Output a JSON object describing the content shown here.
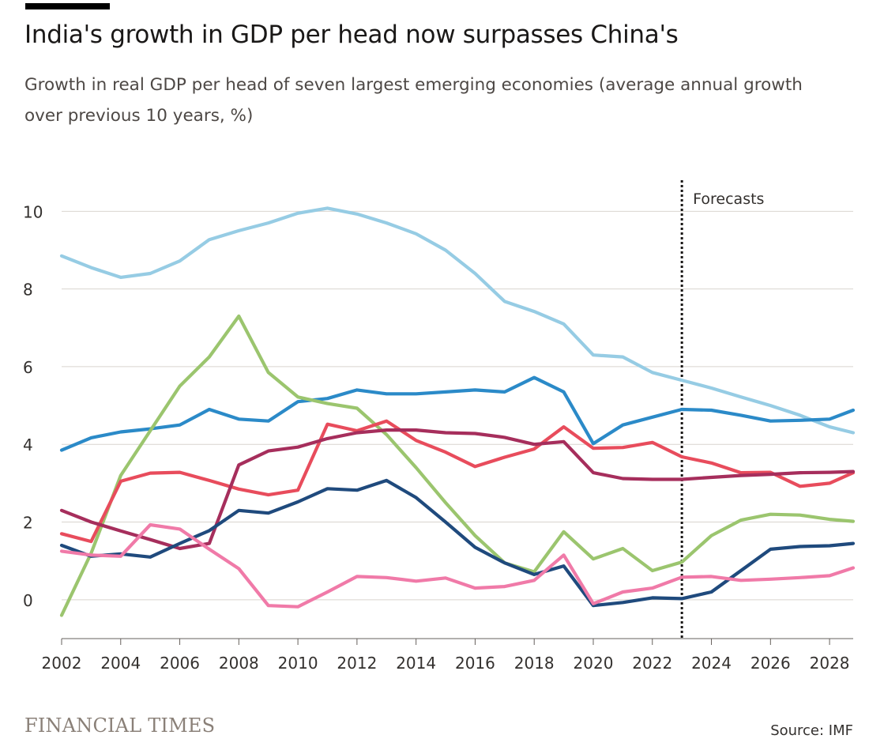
{
  "header": {
    "title": "India's growth in GDP per head now surpasses China's",
    "subtitle": "Growth in real GDP per head of seven largest emerging economies (average annual growth over previous 10 years, %)"
  },
  "footer": {
    "brand": "FINANCIAL TIMES",
    "source": "Source: IMF"
  },
  "chart_data": {
    "type": "line",
    "title": "India's growth in GDP per head now surpasses China's",
    "subtitle": "Growth in real GDP per head of seven largest emerging economies (average annual growth over previous 10 years, %)",
    "xlabel": "",
    "ylabel": "",
    "xlim": [
      2002,
      2028.8
    ],
    "ylim": [
      -1,
      10.8
    ],
    "x_ticks": [
      2002,
      2004,
      2006,
      2008,
      2010,
      2012,
      2014,
      2016,
      2018,
      2020,
      2022,
      2024,
      2026,
      2028
    ],
    "y_ticks": [
      0,
      2,
      4,
      6,
      8,
      10
    ],
    "grid": "horizontal",
    "annotations": [
      {
        "text": "Forecasts",
        "x": 2023
      }
    ],
    "x": [
      2002,
      2003,
      2004,
      2005,
      2006,
      2007,
      2008,
      2009,
      2010,
      2011,
      2012,
      2013,
      2014,
      2015,
      2016,
      2017,
      2018,
      2019,
      2020,
      2021,
      2022,
      2023,
      2024,
      2025,
      2026,
      2027,
      2028,
      2028.8
    ],
    "series": [
      {
        "color": "#96cce4",
        "values": [
          8.85,
          8.55,
          8.3,
          8.4,
          8.72,
          9.27,
          9.5,
          9.7,
          9.95,
          10.08,
          9.93,
          9.7,
          9.42,
          9.0,
          8.4,
          7.68,
          7.42,
          7.1,
          6.3,
          6.25,
          5.85,
          5.65,
          5.45,
          5.22,
          5.0,
          4.75,
          4.45,
          4.3
        ]
      },
      {
        "color": "#2b8ac8",
        "values": [
          3.85,
          4.17,
          4.32,
          4.4,
          4.5,
          4.9,
          4.65,
          4.6,
          5.1,
          5.18,
          5.4,
          5.3,
          5.3,
          5.35,
          5.4,
          5.35,
          5.72,
          5.35,
          4.02,
          4.5,
          4.7,
          4.9,
          4.88,
          4.75,
          4.6,
          4.62,
          4.65,
          4.88
        ]
      },
      {
        "color": "#9bc56e",
        "values": [
          -0.4,
          1.2,
          3.2,
          4.35,
          5.5,
          6.25,
          7.3,
          5.85,
          5.22,
          5.05,
          4.93,
          4.25,
          3.4,
          2.5,
          1.65,
          0.95,
          0.72,
          1.75,
          1.05,
          1.32,
          0.75,
          0.97,
          1.65,
          2.05,
          2.2,
          2.18,
          2.07,
          2.02
        ]
      },
      {
        "color": "#e84c5c",
        "values": [
          1.7,
          1.5,
          3.05,
          3.26,
          3.28,
          3.07,
          2.85,
          2.7,
          2.82,
          4.52,
          4.35,
          4.6,
          4.1,
          3.8,
          3.43,
          3.67,
          3.88,
          4.45,
          3.9,
          3.92,
          4.05,
          3.68,
          3.52,
          3.27,
          3.28,
          2.92,
          3.0,
          3.27
        ]
      },
      {
        "color": "#a62e5c",
        "values": [
          2.3,
          2.0,
          1.77,
          1.55,
          1.32,
          1.45,
          3.47,
          3.83,
          3.93,
          4.15,
          4.3,
          4.37,
          4.37,
          4.3,
          4.28,
          4.18,
          4.0,
          4.07,
          3.27,
          3.12,
          3.1,
          3.1,
          3.15,
          3.2,
          3.23,
          3.27,
          3.28,
          3.3
        ]
      },
      {
        "color": "#1f4a7d",
        "values": [
          1.4,
          1.12,
          1.18,
          1.1,
          1.45,
          1.78,
          2.3,
          2.23,
          2.52,
          2.86,
          2.82,
          3.07,
          2.63,
          2.0,
          1.35,
          0.95,
          0.65,
          0.87,
          -0.15,
          -0.07,
          0.05,
          0.03,
          0.2,
          0.75,
          1.3,
          1.37,
          1.39,
          1.45
        ]
      },
      {
        "color": "#f07aa8",
        "values": [
          1.25,
          1.15,
          1.12,
          1.93,
          1.82,
          1.3,
          0.8,
          -0.15,
          -0.18,
          0.2,
          0.6,
          0.57,
          0.48,
          0.56,
          0.3,
          0.34,
          0.5,
          1.15,
          -0.1,
          0.2,
          0.3,
          0.58,
          0.6,
          0.5,
          0.53,
          0.57,
          0.62,
          0.82
        ]
      }
    ]
  }
}
